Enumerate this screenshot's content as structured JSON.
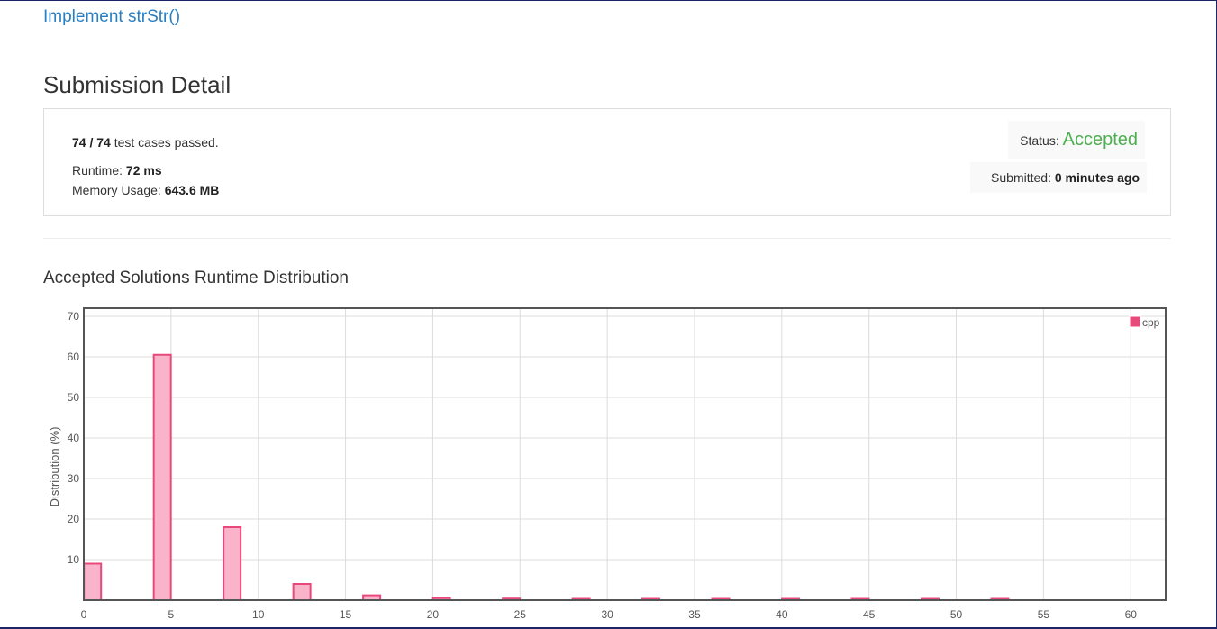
{
  "problem": {
    "title": "Implement strStr()"
  },
  "page": {
    "title": "Submission Detail"
  },
  "detail": {
    "cases_passed": "74",
    "cases_sep": " / ",
    "cases_total": "74",
    "cases_suffix": " test cases passed.",
    "runtime_label": "Runtime: ",
    "runtime_value": "72 ms",
    "memory_label": "Memory Usage: ",
    "memory_value": "643.6 MB",
    "status_label": "Status: ",
    "status_value": "Accepted",
    "submitted_label": "Submitted: ",
    "submitted_value": "0 minutes ago"
  },
  "colors": {
    "accent_link": "#2a7fc0",
    "status_accepted": "#4caf50",
    "bar_fill": "#f9b3cb",
    "bar_stroke": "#e8497a",
    "frame": "#1c2566"
  },
  "chart_data": {
    "type": "bar",
    "title": "Accepted Solutions Runtime Distribution",
    "xlabel": "",
    "ylabel": "Distribution (%)",
    "xlim": [
      0,
      62
    ],
    "ylim": [
      0,
      72
    ],
    "xticks": [
      "0",
      "5",
      "10",
      "15",
      "20",
      "25",
      "30",
      "35",
      "40",
      "45",
      "50",
      "55",
      "60"
    ],
    "yticks": [
      "10",
      "20",
      "30",
      "40",
      "50",
      "60",
      "70"
    ],
    "grid": true,
    "legend_position": "top-right",
    "series": [
      {
        "name": "cpp",
        "x": [
          0.5,
          4.5,
          8.5,
          12.5,
          16.5,
          20.5,
          24.5,
          28.5,
          32.5,
          36.5,
          40.5,
          44.5,
          48.5,
          52.5
        ],
        "values": [
          9,
          60.5,
          18,
          4,
          1.2,
          0.5,
          0.4,
          0.3,
          0.3,
          0.3,
          0.3,
          0.3,
          0.2,
          0.3
        ]
      }
    ]
  }
}
